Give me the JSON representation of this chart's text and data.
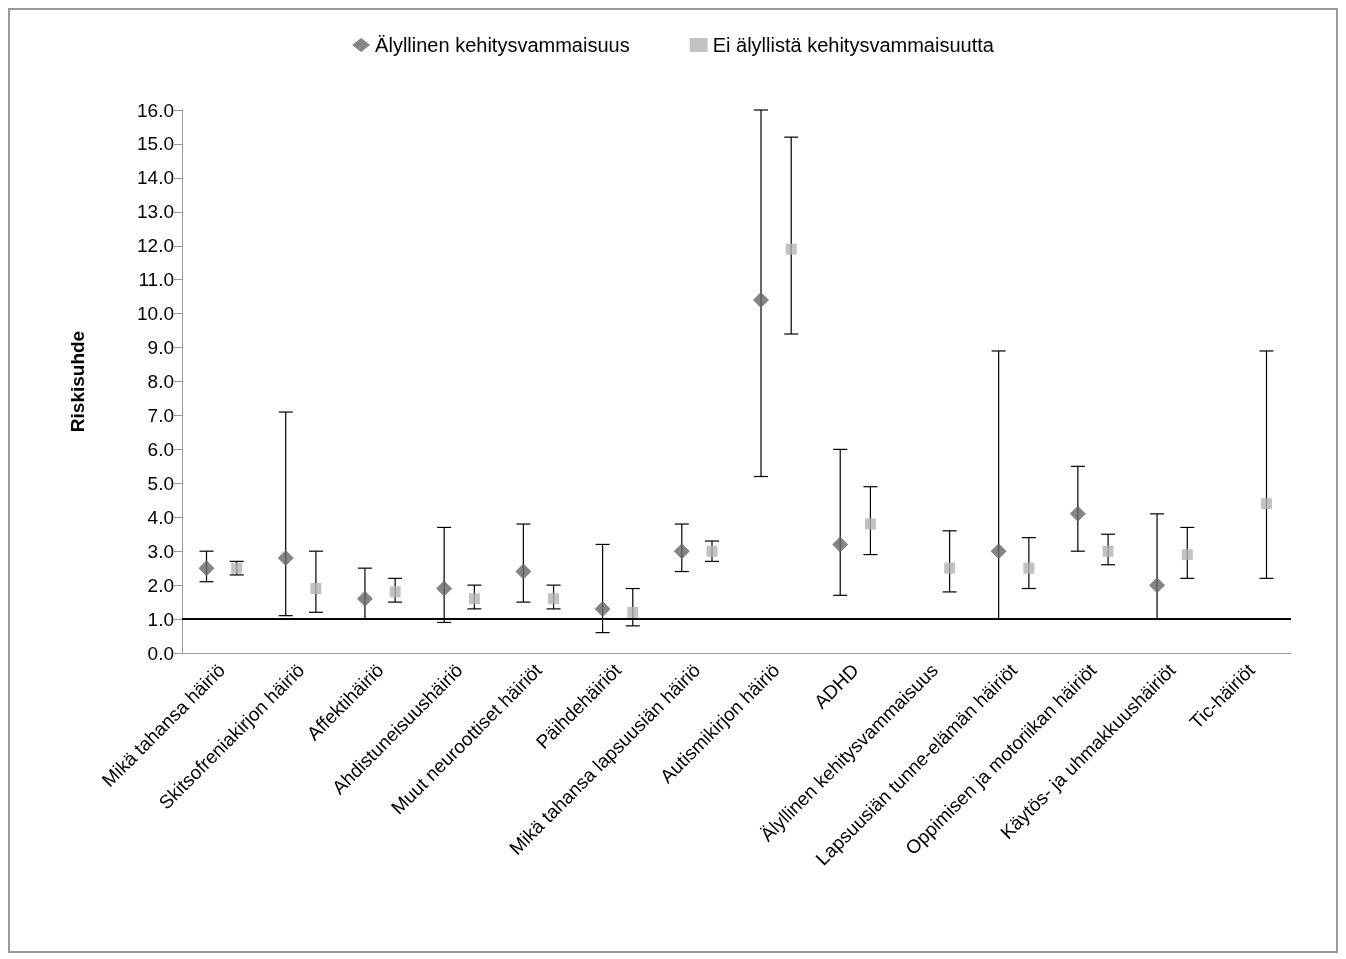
{
  "chart_data": {
    "type": "scatter",
    "ylabel": "Riskisuhde",
    "categories": [
      "Mikä tahansa häiriö",
      "Skitsofreniakirjon häiriö",
      "Affektihäiriö",
      "Ahdistuneisuushäiriö",
      "Muut neuroottiset häiriöt",
      "Päihdehäiriöt",
      "Mikä tahansa lapsuusiän häiriö",
      "Autismikirjon häiriö",
      "ADHD",
      "Älyllinen kehitysvammaisuus",
      "Lapsuusiän tunne-elämän häiriöt",
      "Oppimisen ja motoriikan häiriöt",
      "Käytös- ja uhmakkuushäiriöt",
      "Tic-häiriöt"
    ],
    "series": [
      {
        "name": "Älyllinen kehitysvammaisuus",
        "color": "#666666",
        "marker": "diamond",
        "values": [
          2.5,
          2.8,
          1.6,
          1.9,
          2.4,
          1.3,
          3.0,
          10.4,
          3.2,
          null,
          3.0,
          4.1,
          2.0,
          null
        ],
        "errors": [
          [
            2.1,
            3.0
          ],
          [
            1.1,
            7.1
          ],
          [
            1.0,
            2.5
          ],
          [
            0.9,
            3.7
          ],
          [
            1.5,
            3.8
          ],
          [
            0.6,
            3.2
          ],
          [
            2.4,
            3.8
          ],
          [
            5.2,
            16.0
          ],
          [
            1.7,
            6.0
          ],
          null,
          [
            1.0,
            8.9
          ],
          [
            3.0,
            5.5
          ],
          [
            1.0,
            4.1
          ],
          null
        ]
      },
      {
        "name": "Ei älyllistä kehitysvammaisuutta",
        "color": "#b3b3b3",
        "marker": "square",
        "values": [
          2.5,
          1.9,
          1.8,
          1.6,
          1.6,
          1.2,
          3.0,
          11.9,
          3.8,
          2.5,
          2.5,
          3.0,
          2.9,
          4.4
        ],
        "errors": [
          [
            2.3,
            2.7
          ],
          [
            1.2,
            3.0
          ],
          [
            1.5,
            2.2
          ],
          [
            1.3,
            2.0
          ],
          [
            1.3,
            2.0
          ],
          [
            0.8,
            1.9
          ],
          [
            2.7,
            3.3
          ],
          [
            9.4,
            15.2
          ],
          [
            2.9,
            4.9
          ],
          [
            1.8,
            3.6
          ],
          [
            1.9,
            3.4
          ],
          [
            2.6,
            3.5
          ],
          [
            2.2,
            3.7
          ],
          [
            2.2,
            8.9
          ]
        ]
      }
    ],
    "ylim": [
      0,
      16
    ],
    "yticks": [
      {
        "value": 0,
        "label": "0.0"
      },
      {
        "value": 1,
        "label": "1.0"
      },
      {
        "value": 2,
        "label": "2.0"
      },
      {
        "value": 3,
        "label": "3.0"
      },
      {
        "value": 4,
        "label": "4.0"
      },
      {
        "value": 5,
        "label": "5.0"
      },
      {
        "value": 6,
        "label": "6.0"
      },
      {
        "value": 7,
        "label": "7.0"
      },
      {
        "value": 8,
        "label": "8.0"
      },
      {
        "value": 9,
        "label": "9.0"
      },
      {
        "value": 10,
        "label": "10.0"
      },
      {
        "value": 11,
        "label": "11.0"
      },
      {
        "value": 12,
        "label": "12.0"
      },
      {
        "value": 13,
        "label": "13.0"
      },
      {
        "value": 14,
        "label": "14.0"
      },
      {
        "value": 15,
        "label": "15.0"
      },
      {
        "value": 16,
        "label": "16.0"
      }
    ],
    "ref_lines": [
      {
        "axis": "y",
        "value": 1,
        "color": "#000000"
      }
    ],
    "grid": false,
    "legend": "top"
  }
}
